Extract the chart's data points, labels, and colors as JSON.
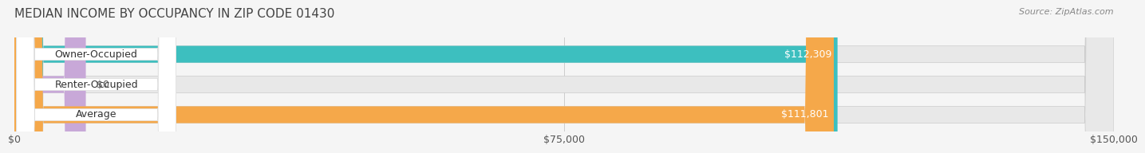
{
  "title": "MEDIAN INCOME BY OCCUPANCY IN ZIP CODE 01430",
  "source": "Source: ZipAtlas.com",
  "categories": [
    "Owner-Occupied",
    "Renter-Occupied",
    "Average"
  ],
  "values": [
    112309,
    0,
    111801
  ],
  "bar_colors": [
    "#3dbfbf",
    "#c8a8d8",
    "#f5a84a"
  ],
  "bar_labels": [
    "$112,309",
    "$0",
    "$111,801"
  ],
  "xlim": [
    0,
    150000
  ],
  "xticks": [
    0,
    75000,
    150000
  ],
  "xtick_labels": [
    "$0",
    "$75,000",
    "$150,000"
  ],
  "background_color": "#f5f5f5",
  "bar_bg_color": "#e8e8e8",
  "label_bg_color": "#ffffff",
  "title_fontsize": 11,
  "source_fontsize": 8,
  "label_fontsize": 9,
  "tick_fontsize": 9,
  "bar_height": 0.55,
  "figsize": [
    14.06,
    1.96
  ],
  "dpi": 100
}
